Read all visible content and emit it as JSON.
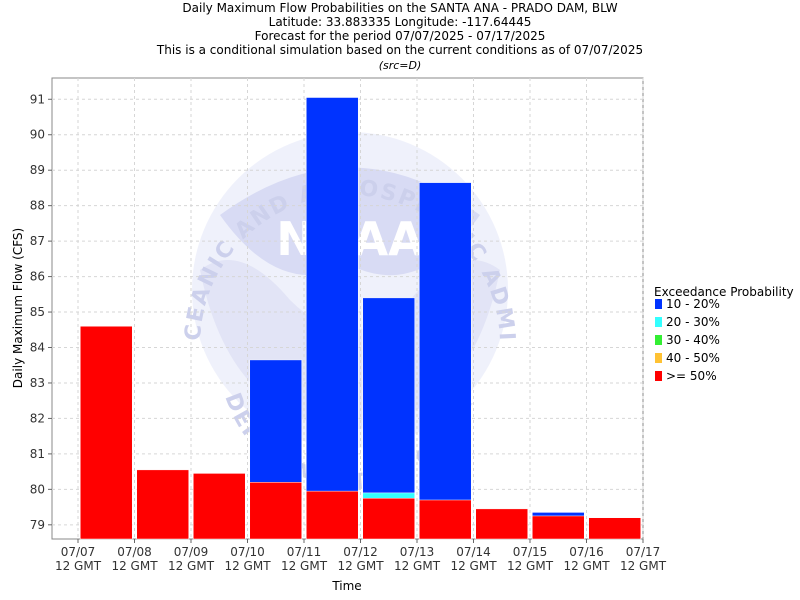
{
  "chart_data": {
    "type": "bar",
    "title_lines": [
      "Daily Maximum Flow Probabilities on the SANTA ANA - PRADO DAM, BLW",
      "Latitude: 33.883335 Longitude: -117.64445",
      "Forecast for the period 07/07/2025 - 07/17/2025",
      "This is a conditional simulation based on the current conditions as of 07/07/2025"
    ],
    "subtitle": "(src=D)",
    "xlabel": "Time",
    "ylabel": "Daily Maximum Flow (CFS)",
    "ylim": [
      78.6,
      91.6
    ],
    "yticks": [
      79,
      80,
      81,
      82,
      83,
      84,
      85,
      86,
      87,
      88,
      89,
      90,
      91
    ],
    "x_ticks": [
      {
        "date": "07/07",
        "time": "12 GMT"
      },
      {
        "date": "07/08",
        "time": "12 GMT"
      },
      {
        "date": "07/09",
        "time": "12 GMT"
      },
      {
        "date": "07/10",
        "time": "12 GMT"
      },
      {
        "date": "07/11",
        "time": "12 GMT"
      },
      {
        "date": "07/12",
        "time": "12 GMT"
      },
      {
        "date": "07/13",
        "time": "12 GMT"
      },
      {
        "date": "07/14",
        "time": "12 GMT"
      },
      {
        "date": "07/15",
        "time": "12 GMT"
      },
      {
        "date": "07/16",
        "time": "12 GMT"
      },
      {
        "date": "07/17",
        "time": "12 GMT"
      }
    ],
    "legend": {
      "title": "Exceedance Probability",
      "placement": "right",
      "entries": [
        {
          "label": "10 - 20%",
          "color": "#0033ff"
        },
        {
          "label": "20 - 30%",
          "color": "#33ffff"
        },
        {
          "label": "30 - 40%",
          "color": "#33ee33"
        },
        {
          "label": "40 - 50%",
          "color": "#ffc233"
        },
        {
          "label": ">= 50%",
          "color": "#ff0000"
        }
      ]
    },
    "categories": [
      "07/07",
      "07/08",
      "07/09",
      "07/10",
      "07/11",
      "07/12",
      "07/13",
      "07/14",
      "07/15",
      "07/16"
    ],
    "series": [
      {
        "name": ">= 50%",
        "color": "#ff0000",
        "values": [
          84.6,
          80.55,
          80.45,
          80.2,
          79.95,
          79.75,
          79.7,
          79.45,
          79.25,
          79.2
        ]
      },
      {
        "name": "40 - 50%",
        "color": "#ffc233",
        "values": [
          null,
          null,
          null,
          null,
          null,
          null,
          null,
          null,
          null,
          null
        ]
      },
      {
        "name": "30 - 40%",
        "color": "#33ee33",
        "values": [
          null,
          null,
          null,
          null,
          null,
          null,
          null,
          null,
          null,
          null
        ]
      },
      {
        "name": "20 - 30%",
        "color": "#33ffff",
        "values": [
          null,
          null,
          null,
          null,
          null,
          79.9,
          null,
          null,
          null,
          null
        ]
      },
      {
        "name": "10 - 20%",
        "color": "#0033ff",
        "values": [
          null,
          null,
          null,
          83.65,
          91.05,
          85.4,
          88.65,
          null,
          79.35,
          null
        ]
      }
    ],
    "grid": true
  },
  "watermark": {
    "arc_text_top": "NATIONAL OCEANIC AND ATMOSPHERIC ADMINISTRATION",
    "arc_text_bottom": "U.S. DEPARTMENT OF COMMERCE",
    "logo_text": "NOAA"
  }
}
